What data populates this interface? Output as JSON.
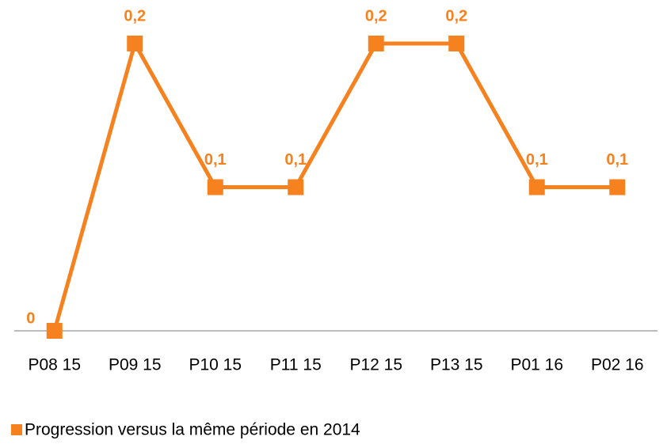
{
  "chart_data": {
    "type": "line",
    "categories": [
      "P08 15",
      "P09 15",
      "P10 15",
      "P11 15",
      "P12 15",
      "P13 15",
      "P01 16",
      "P02 16"
    ],
    "series": [
      {
        "name": "Progression versus la même période en 2014",
        "color": "#f5821f",
        "values": [
          0,
          0.2,
          0.1,
          0.1,
          0.2,
          0.2,
          0.1,
          0.1
        ],
        "value_labels": [
          "0",
          "0,2",
          "0,1",
          "0,1",
          "0,2",
          "0,2",
          "0,1",
          "0,1"
        ]
      }
    ],
    "ylim": [
      0,
      0.2
    ],
    "legend": "bottom-left"
  }
}
